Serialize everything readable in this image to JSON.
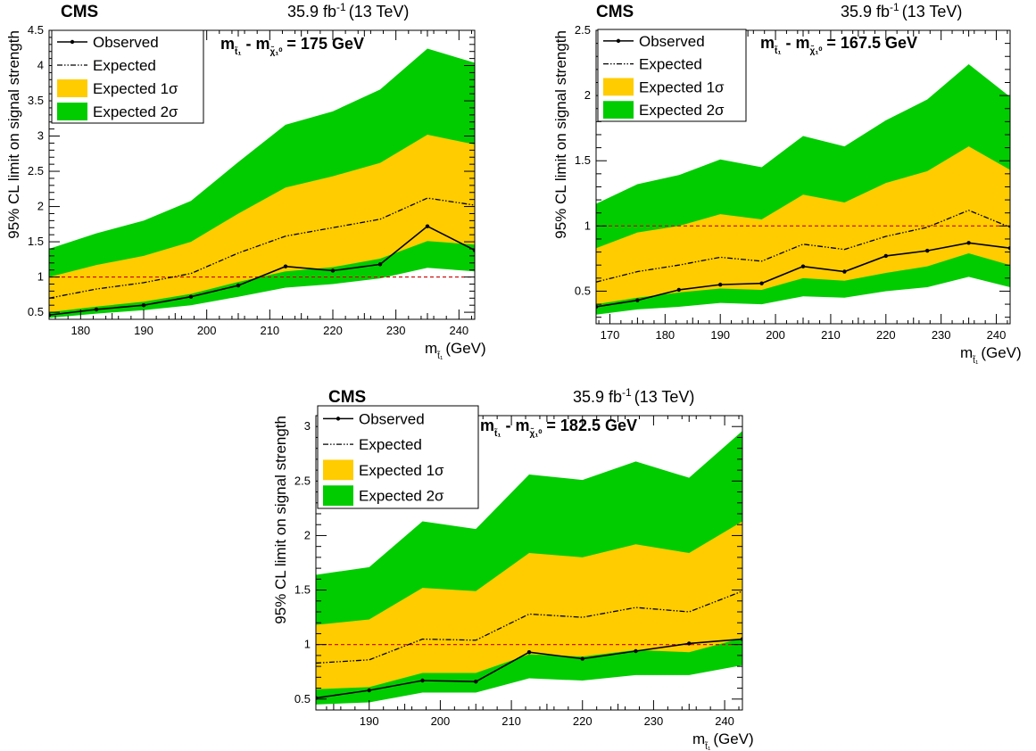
{
  "chart_data": [
    {
      "type": "line",
      "experiment": "CMS",
      "lumi_text": "35.9 fb",
      "lumi_exponent": "-1",
      "energy_text": "(13 TeV)",
      "mass_diff_text": "175 GeV",
      "xlabel": "(GeV)",
      "ylabel": "95% CL limit on signal strength",
      "xlim": [
        175,
        242.5
      ],
      "ylim": [
        0.4,
        4.5
      ],
      "xticks": [
        180,
        190,
        200,
        210,
        220,
        230,
        240
      ],
      "yticks": [
        0.5,
        1,
        1.5,
        2,
        2.5,
        3,
        3.5,
        4,
        4.5
      ],
      "reference_line": 1,
      "x": [
        175,
        182.5,
        190,
        197.5,
        205,
        212.5,
        220,
        227.5,
        235,
        242.5
      ],
      "observed": [
        0.46,
        0.54,
        0.6,
        0.72,
        0.88,
        1.15,
        1.09,
        1.18,
        1.72,
        1.38
      ],
      "expected": [
        0.7,
        0.83,
        0.92,
        1.05,
        1.34,
        1.58,
        1.7,
        1.82,
        2.12,
        2.02
      ],
      "band1_low": [
        0.5,
        0.58,
        0.65,
        0.76,
        0.93,
        1.08,
        1.14,
        1.26,
        1.51,
        1.46
      ],
      "band1_high": [
        1.0,
        1.17,
        1.3,
        1.5,
        1.9,
        2.27,
        2.43,
        2.62,
        3.02,
        2.88
      ],
      "band2_low": [
        0.42,
        0.48,
        0.53,
        0.6,
        0.72,
        0.85,
        0.9,
        0.98,
        1.13,
        1.08
      ],
      "band2_high": [
        1.4,
        1.62,
        1.8,
        2.08,
        2.63,
        3.16,
        3.35,
        3.66,
        4.24,
        4.04
      ],
      "legend": [
        "Observed",
        "Expected",
        "Expected 1σ",
        "Expected 2σ"
      ]
    },
    {
      "type": "line",
      "experiment": "CMS",
      "lumi_text": "35.9 fb",
      "lumi_exponent": "-1",
      "energy_text": "(13 TeV)",
      "mass_diff_text": "167.5 GeV",
      "xlabel": "(GeV)",
      "ylabel": "95% CL limit on signal strength",
      "xlim": [
        167.5,
        242.5
      ],
      "ylim": [
        0.25,
        2.5
      ],
      "xticks": [
        170,
        180,
        190,
        200,
        210,
        220,
        230,
        240
      ],
      "yticks": [
        0.5,
        1,
        1.5,
        2,
        2.5
      ],
      "reference_line": 1,
      "x": [
        167.5,
        175,
        182.5,
        190,
        197.5,
        205,
        212.5,
        220,
        227.5,
        235,
        242.5
      ],
      "observed": [
        0.38,
        0.43,
        0.51,
        0.55,
        0.56,
        0.69,
        0.65,
        0.77,
        0.81,
        0.87,
        0.83
      ],
      "expected": [
        0.57,
        0.65,
        0.7,
        0.76,
        0.73,
        0.86,
        0.82,
        0.92,
        0.99,
        1.12,
        0.99
      ],
      "band1_low": [
        0.4,
        0.45,
        0.49,
        0.52,
        0.51,
        0.6,
        0.58,
        0.64,
        0.69,
        0.79,
        0.7
      ],
      "band1_high": [
        0.83,
        0.95,
        1.0,
        1.09,
        1.05,
        1.24,
        1.18,
        1.33,
        1.42,
        1.61,
        1.43
      ],
      "band2_low": [
        0.32,
        0.36,
        0.38,
        0.41,
        0.4,
        0.46,
        0.45,
        0.5,
        0.53,
        0.61,
        0.53
      ],
      "band2_high": [
        1.17,
        1.32,
        1.39,
        1.51,
        1.45,
        1.69,
        1.61,
        1.81,
        1.97,
        2.24,
        1.99
      ],
      "legend": [
        "Observed",
        "Expected",
        "Expected 1σ",
        "Expected 2σ"
      ]
    },
    {
      "type": "line",
      "experiment": "CMS",
      "lumi_text": "35.9 fb",
      "lumi_exponent": "-1",
      "energy_text": "(13 TeV)",
      "mass_diff_text": "182.5 GeV",
      "xlabel": "(GeV)",
      "ylabel": "95% CL limit on signal strength",
      "xlim": [
        182.5,
        242.5
      ],
      "ylim": [
        0.4,
        3.1
      ],
      "xticks": [
        190,
        200,
        210,
        220,
        230,
        240
      ],
      "yticks": [
        0.5,
        1,
        1.5,
        2,
        2.5,
        3
      ],
      "reference_line": 1,
      "x": [
        182.5,
        190,
        197.5,
        205,
        212.5,
        220,
        227.5,
        235,
        242.5
      ],
      "observed": [
        0.51,
        0.58,
        0.67,
        0.66,
        0.93,
        0.87,
        0.94,
        1.01,
        1.05
      ],
      "expected": [
        0.83,
        0.86,
        1.05,
        1.04,
        1.28,
        1.25,
        1.34,
        1.3,
        1.49
      ],
      "band1_low": [
        0.59,
        0.61,
        0.74,
        0.74,
        0.91,
        0.89,
        0.95,
        0.93,
        1.06
      ],
      "band1_high": [
        1.18,
        1.23,
        1.52,
        1.49,
        1.84,
        1.8,
        1.92,
        1.84,
        2.13
      ],
      "band2_low": [
        0.45,
        0.47,
        0.56,
        0.56,
        0.69,
        0.67,
        0.72,
        0.72,
        0.81
      ],
      "band2_high": [
        1.64,
        1.71,
        2.13,
        2.06,
        2.56,
        2.51,
        2.68,
        2.53,
        2.96
      ],
      "legend": [
        "Observed",
        "Expected",
        "Expected 1σ",
        "Expected 2σ"
      ]
    }
  ],
  "colors": {
    "band1": "#ffcc00",
    "band2": "#00cc00",
    "reference": "#cc0000",
    "line": "#000000"
  }
}
